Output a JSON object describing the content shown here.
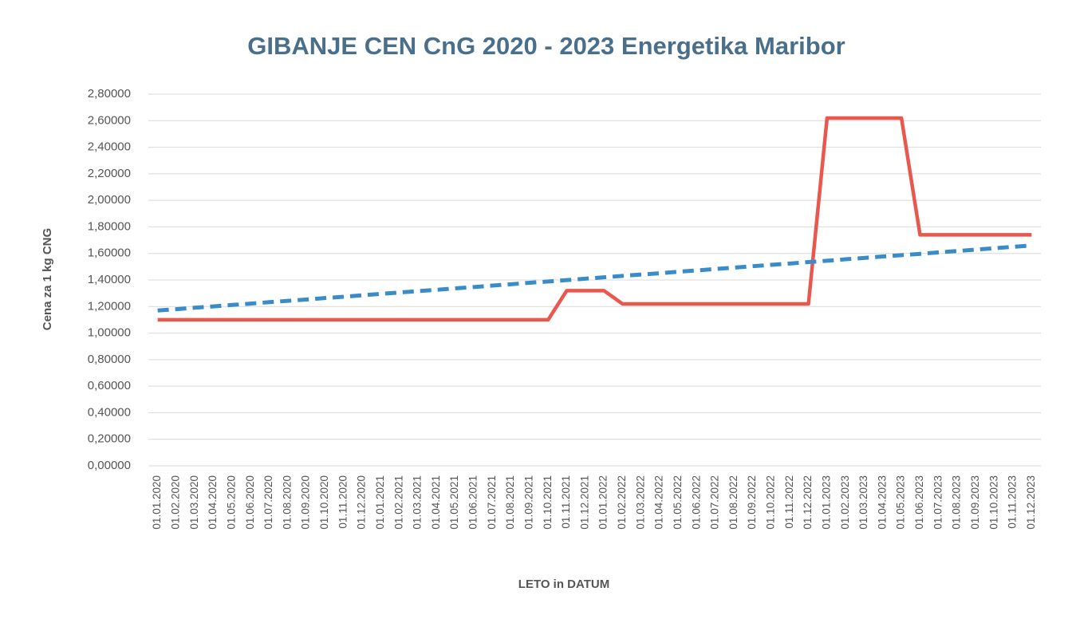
{
  "chart_data": {
    "type": "line",
    "title": "GIBANJE CEN CnG 2020 - 2023 Energetika Maribor",
    "y_label": "Cena za 1 kg CNG",
    "x_label": "LETO in DATUM",
    "categories": [
      "01.01.2020",
      "01.02.2020",
      "01.03.2020",
      "01.04.2020",
      "01.05.2020",
      "01.06.2020",
      "01.07.2020",
      "01.08.2020",
      "01.09.2020",
      "01.10.2020",
      "01.11.2020",
      "01.12.2020",
      "01.01.2021",
      "01.02.2021",
      "01.03.2021",
      "01.04.2021",
      "01.05.2021",
      "01.06.2021",
      "01.07.2021",
      "01.08.2021",
      "01.09.2021",
      "01.10.2021",
      "01.11.2021",
      "01.12.2021",
      "01.01.2022",
      "01.02.2022",
      "01.03.2022",
      "01.04.2022",
      "01.05.2022",
      "01.06.2022",
      "01.07.2022",
      "01.08.2022",
      "01.09.2022",
      "01.10.2022",
      "01.11.2022",
      "01.12.2022",
      "01.01.2023",
      "01.02.2023",
      "01.03.2023",
      "01.04.2023",
      "01.05.2023",
      "01.06.2023",
      "01.07.2023",
      "01.08.2023",
      "01.09.2023",
      "01.10.2023",
      "01.11.2023",
      "01.12.2023"
    ],
    "series": [
      {
        "color": "#e8584f",
        "dashed": false,
        "values": [
          1.1,
          1.1,
          1.1,
          1.1,
          1.1,
          1.1,
          1.1,
          1.1,
          1.1,
          1.1,
          1.1,
          1.1,
          1.1,
          1.1,
          1.1,
          1.1,
          1.1,
          1.1,
          1.1,
          1.1,
          1.1,
          1.1,
          1.32,
          1.32,
          1.32,
          1.22,
          1.22,
          1.22,
          1.22,
          1.22,
          1.22,
          1.22,
          1.22,
          1.22,
          1.22,
          1.22,
          2.62,
          2.62,
          2.62,
          2.62,
          2.62,
          1.74,
          1.74,
          1.74,
          1.74,
          1.74,
          1.74,
          1.74
        ]
      },
      {
        "color": "#3a8cc8",
        "dashed": true,
        "values": [
          1.17,
          1.18,
          1.191,
          1.201,
          1.212,
          1.222,
          1.233,
          1.243,
          1.253,
          1.264,
          1.274,
          1.285,
          1.295,
          1.306,
          1.316,
          1.326,
          1.337,
          1.347,
          1.358,
          1.368,
          1.379,
          1.389,
          1.399,
          1.41,
          1.42,
          1.431,
          1.441,
          1.451,
          1.462,
          1.472,
          1.483,
          1.493,
          1.504,
          1.514,
          1.524,
          1.535,
          1.545,
          1.556,
          1.566,
          1.577,
          1.587,
          1.597,
          1.608,
          1.618,
          1.629,
          1.639,
          1.65,
          1.66
        ]
      }
    ],
    "ylim": [
      0,
      2.8
    ],
    "yticks": [
      {
        "value": 0,
        "label": "0,00000"
      },
      {
        "value": 0.2,
        "label": "0,20000"
      },
      {
        "value": 0.4,
        "label": "0,40000"
      },
      {
        "value": 0.6,
        "label": "0,60000"
      },
      {
        "value": 0.8,
        "label": "0,80000"
      },
      {
        "value": 1.0,
        "label": "1,00000"
      },
      {
        "value": 1.2,
        "label": "1,20000"
      },
      {
        "value": 1.4,
        "label": "1,40000"
      },
      {
        "value": 1.6,
        "label": "1,60000"
      },
      {
        "value": 1.8,
        "label": "1,80000"
      },
      {
        "value": 2.0,
        "label": "2,00000"
      },
      {
        "value": 2.2,
        "label": "2,20000"
      },
      {
        "value": 2.4,
        "label": "2,40000"
      },
      {
        "value": 2.6,
        "label": "2,60000"
      },
      {
        "value": 2.8,
        "label": "2,80000"
      }
    ],
    "grid": true
  }
}
